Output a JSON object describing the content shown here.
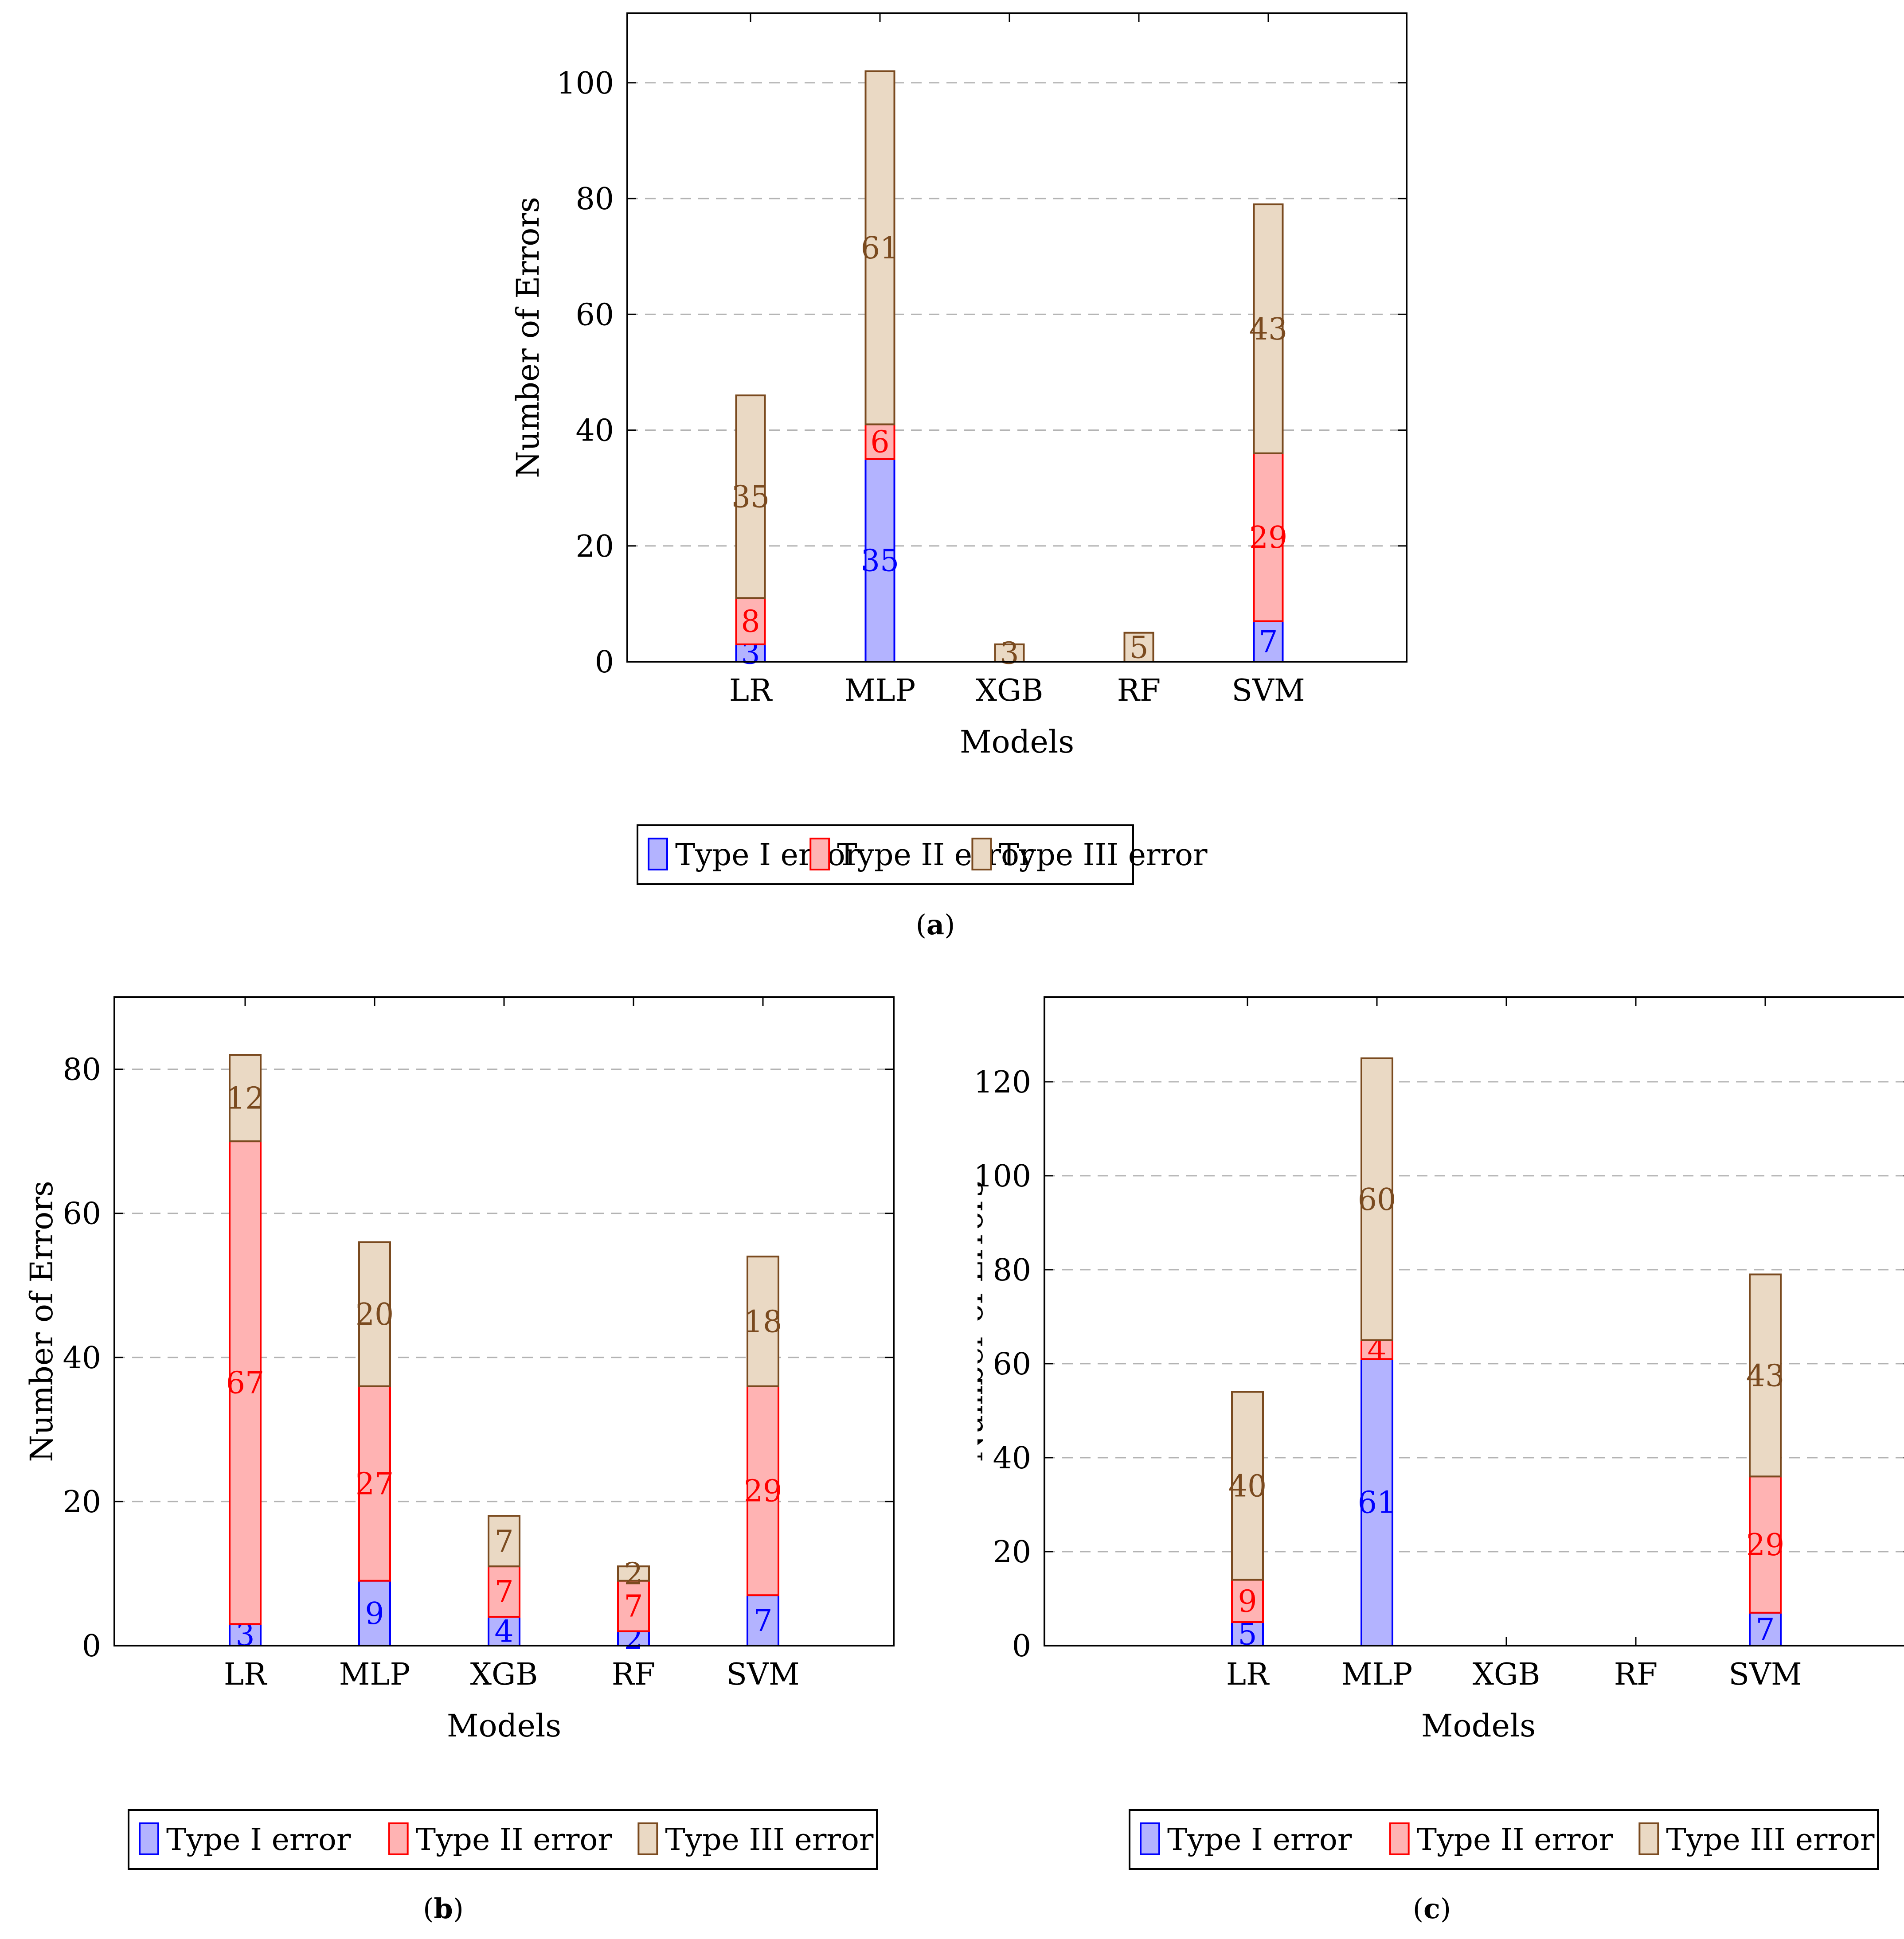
{
  "colors": {
    "type1_fill": "#b3b3ff",
    "type1_stroke": "#0000ff",
    "type1_label": "#0000ff",
    "type2_fill": "#ffb3b3",
    "type2_stroke": "#ff0000",
    "type2_label": "#ff0000",
    "type3_fill": "#ead9c4",
    "type3_stroke": "#7a4a1f",
    "type3_label": "#7a4a1f",
    "grid": "#b3b3b3"
  },
  "chart_data": [
    {
      "id": "a",
      "type": "bar",
      "stacked": true,
      "caption": "a",
      "xlabel": "Models",
      "ylabel": "Number of Errors",
      "categories": [
        "LR",
        "MLP",
        "XGB",
        "RF",
        "SVM"
      ],
      "ylim": [
        0,
        112
      ],
      "yticks": [
        0,
        20,
        40,
        60,
        80,
        100
      ],
      "grid": "horizontal dashed",
      "legend_position": "below",
      "series": [
        {
          "name": "Type I error",
          "values": [
            3,
            35,
            0,
            0,
            7
          ]
        },
        {
          "name": "Type II error",
          "values": [
            8,
            6,
            0,
            0,
            29
          ]
        },
        {
          "name": "Type III error",
          "values": [
            35,
            61,
            3,
            5,
            43
          ]
        }
      ]
    },
    {
      "id": "b",
      "type": "bar",
      "stacked": true,
      "caption": "b",
      "xlabel": "Models",
      "ylabel": "Number of Errors",
      "categories": [
        "LR",
        "MLP",
        "XGB",
        "RF",
        "SVM"
      ],
      "ylim": [
        0,
        90
      ],
      "yticks": [
        0,
        20,
        40,
        60,
        80
      ],
      "grid": "horizontal dashed",
      "legend_position": "below",
      "series": [
        {
          "name": "Type I error",
          "values": [
            3,
            9,
            4,
            2,
            7
          ]
        },
        {
          "name": "Type II error",
          "values": [
            67,
            27,
            7,
            7,
            29
          ]
        },
        {
          "name": "Type III error",
          "values": [
            12,
            20,
            7,
            2,
            18
          ]
        }
      ]
    },
    {
      "id": "c",
      "type": "bar",
      "stacked": true,
      "caption": "c",
      "xlabel": "Models",
      "ylabel": "Number of Errors",
      "categories": [
        "LR",
        "MLP",
        "XGB",
        "RF",
        "SVM"
      ],
      "ylim": [
        0,
        138
      ],
      "yticks": [
        0,
        20,
        40,
        60,
        80,
        100,
        120
      ],
      "grid": "horizontal dashed",
      "legend_position": "below",
      "series": [
        {
          "name": "Type I error",
          "values": [
            5,
            61,
            0,
            0,
            7
          ]
        },
        {
          "name": "Type II error",
          "values": [
            9,
            4,
            0,
            0,
            29
          ]
        },
        {
          "name": "Type III error",
          "values": [
            40,
            60,
            0,
            0,
            43
          ]
        }
      ]
    }
  ]
}
